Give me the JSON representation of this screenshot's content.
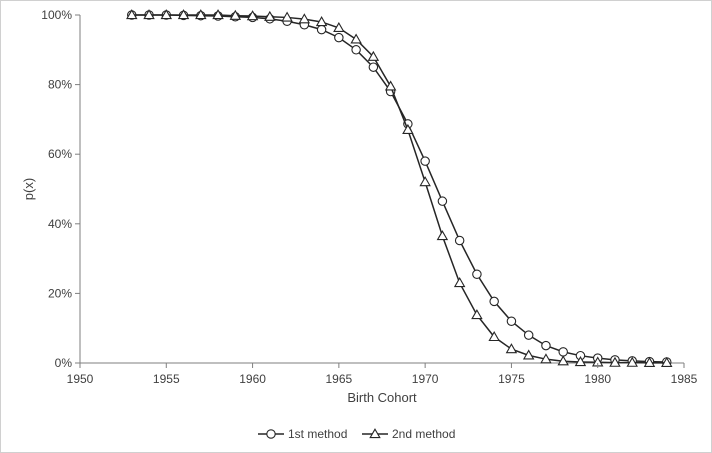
{
  "chart_data": {
    "type": "line",
    "title": "",
    "xlabel": "Birth Cohort",
    "ylabel": "p(x)",
    "xlim": [
      1950,
      1985
    ],
    "ylim": [
      0,
      100
    ],
    "x_ticks": [
      1950,
      1955,
      1960,
      1965,
      1970,
      1975,
      1980,
      1985
    ],
    "y_ticks": [
      0,
      20,
      40,
      60,
      80,
      100
    ],
    "y_tick_format": "percent",
    "grid": false,
    "legend_position": "bottom",
    "x": [
      1953,
      1954,
      1955,
      1956,
      1957,
      1958,
      1959,
      1960,
      1961,
      1962,
      1963,
      1964,
      1965,
      1966,
      1967,
      1968,
      1969,
      1970,
      1971,
      1972,
      1973,
      1974,
      1975,
      1976,
      1977,
      1978,
      1979,
      1980,
      1981,
      1982,
      1983,
      1984
    ],
    "series": [
      {
        "name": "1st method",
        "marker": "circle",
        "values": [
          100,
          100,
          100,
          99.9,
          99.8,
          99.7,
          99.5,
          99.3,
          98.9,
          98.2,
          97.2,
          95.8,
          93.5,
          90,
          85,
          78,
          68.7,
          58,
          46.5,
          35.2,
          25.5,
          17.7,
          12,
          8,
          5,
          3.2,
          2.1,
          1.4,
          0.9,
          0.6,
          0.4,
          0.3
        ]
      },
      {
        "name": "2nd method",
        "marker": "triangle",
        "values": [
          100,
          100,
          100,
          100,
          100,
          100,
          99.8,
          99.7,
          99.5,
          99.3,
          98.8,
          98,
          96.3,
          93,
          88,
          79.5,
          67,
          52,
          36.5,
          23,
          13.8,
          7.5,
          4,
          2.2,
          1.1,
          0.5,
          0.3,
          0.2,
          0.1,
          0.1,
          0.05,
          0.05
        ]
      }
    ],
    "colors": {
      "line": "#262626",
      "marker_fill": "#ffffff",
      "axis": "#7f7f7f",
      "text": "#404040"
    }
  }
}
